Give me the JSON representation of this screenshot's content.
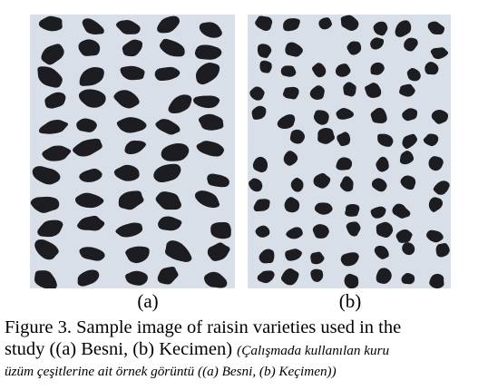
{
  "figure": {
    "panels": [
      {
        "label": "(a)",
        "content": "Besni raisins (dark, elongated kernels on light background)",
        "background": "#d8dfe9",
        "raisin_color": "#1d1d21"
      },
      {
        "label": "(b)",
        "content": "Kecimen raisins (dark, smaller kernels on light background)",
        "background": "#d8dfe9",
        "raisin_color": "#1d1d21"
      }
    ],
    "caption": {
      "line1_en": "Figure 3. Sample image of raisin varieties used in the",
      "line2_en": "study ((a) Besni, (b) Kecimen) ",
      "line2_tr": "(Çalışmada kullanılan kuru",
      "line3_tr": "üzüm çeşitlerine ait örnek görüntü ((a) Besni, (b) Keçimen))"
    }
  }
}
